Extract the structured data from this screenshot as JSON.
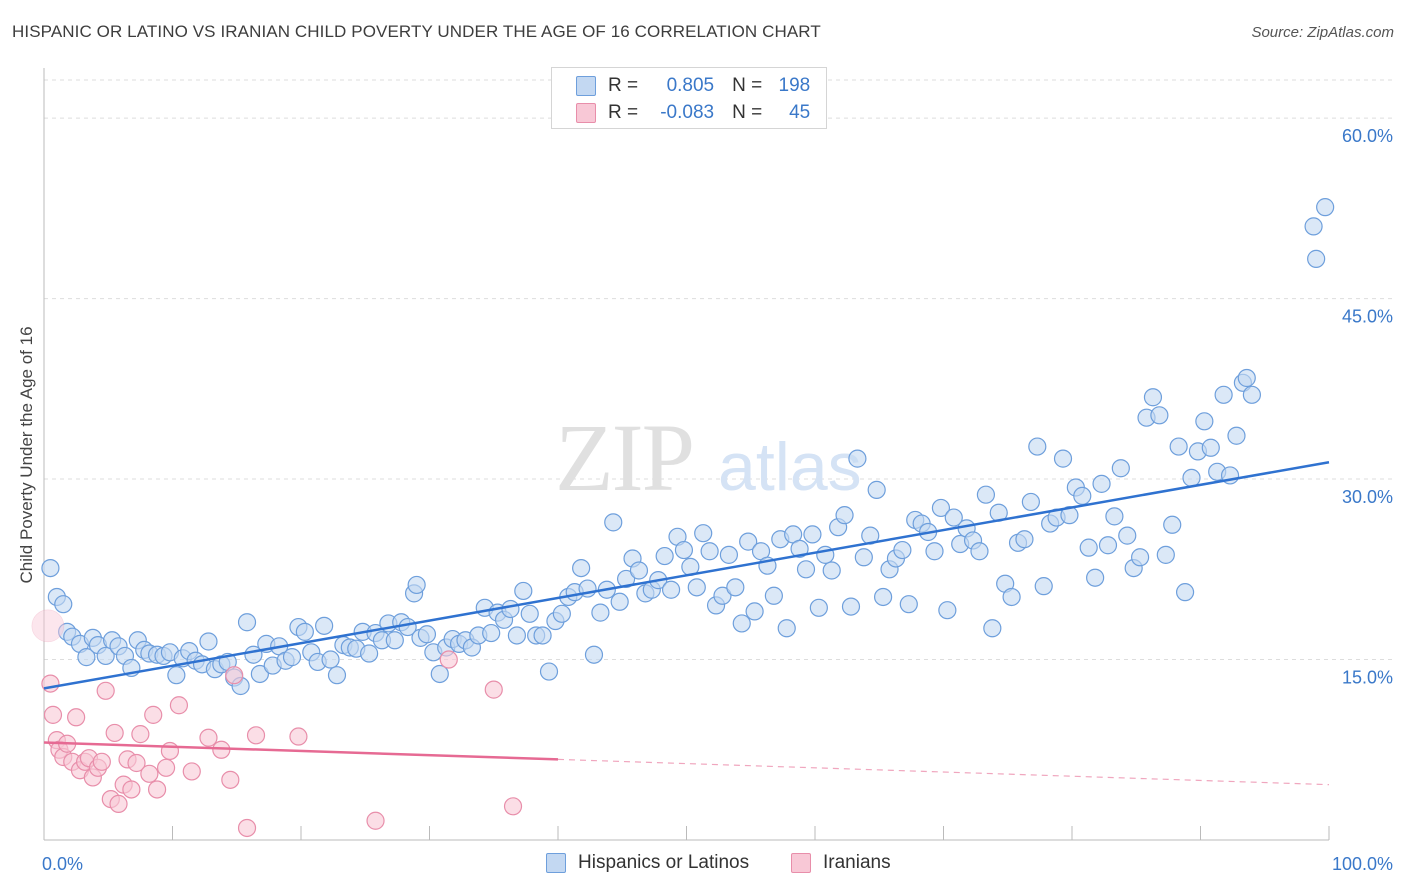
{
  "title": "HISPANIC OR LATINO VS IRANIAN CHILD POVERTY UNDER THE AGE OF 16 CORRELATION CHART",
  "source": "Source: ZipAtlas.com",
  "watermark": {
    "zip": "ZIP",
    "atlas": "atlas"
  },
  "colors": {
    "blue_fill": "#c3d8f2",
    "blue_stroke": "#6e9fdc",
    "blue_line": "#2f72d0",
    "pink_fill": "#f8c8d6",
    "pink_stroke": "#e88eaa",
    "pink_line": "#e66a93",
    "axis_text": "#3a78c9",
    "grid": "#dddddd"
  },
  "legend": {
    "rows": [
      {
        "r_label": "R =",
        "r_value": "0.805",
        "n_label": "N =",
        "n_value": "198"
      },
      {
        "r_label": "R =",
        "r_value": "-0.083",
        "n_label": "N =",
        "n_value": "45"
      }
    ]
  },
  "bottom_legend": {
    "series1": "Hispanics or Latinos",
    "series2": "Iranians"
  },
  "chart_data": {
    "type": "scatter",
    "xlabel": "",
    "ylabel": "Child Poverty Under the Age of 16",
    "xlim": [
      0,
      100
    ],
    "ylim": [
      0,
      63.5
    ],
    "x_tick_labels": [
      "0.0%",
      "100.0%"
    ],
    "y_ticks": [
      15,
      30,
      45,
      60
    ],
    "y_tick_labels": [
      "15.0%",
      "30.0%",
      "45.0%",
      "60.0%"
    ],
    "grid": true,
    "legend_position": "top-center",
    "series": [
      {
        "name": "Hispanics or Latinos",
        "color": "#6e9fdc",
        "trend": {
          "x": [
            0,
            100
          ],
          "y": [
            12.6,
            31.4
          ]
        },
        "points": [
          [
            0.5,
            22.6
          ],
          [
            1.0,
            20.2
          ],
          [
            1.5,
            19.6
          ],
          [
            1.8,
            17.3
          ],
          [
            2.2,
            16.9
          ],
          [
            2.8,
            16.3
          ],
          [
            3.3,
            15.2
          ],
          [
            3.8,
            16.8
          ],
          [
            4.2,
            16.2
          ],
          [
            4.8,
            15.3
          ],
          [
            5.3,
            16.6
          ],
          [
            5.8,
            16.1
          ],
          [
            6.3,
            15.3
          ],
          [
            6.8,
            14.3
          ],
          [
            7.3,
            16.6
          ],
          [
            7.8,
            15.8
          ],
          [
            8.2,
            15.5
          ],
          [
            8.8,
            15.4
          ],
          [
            9.3,
            15.3
          ],
          [
            9.8,
            15.6
          ],
          [
            10.3,
            13.7
          ],
          [
            10.8,
            15.1
          ],
          [
            11.3,
            15.7
          ],
          [
            11.8,
            14.9
          ],
          [
            12.3,
            14.6
          ],
          [
            12.8,
            16.5
          ],
          [
            13.3,
            14.2
          ],
          [
            13.8,
            14.6
          ],
          [
            14.3,
            14.8
          ],
          [
            14.8,
            13.5
          ],
          [
            15.3,
            12.8
          ],
          [
            15.8,
            18.1
          ],
          [
            16.3,
            15.4
          ],
          [
            16.8,
            13.8
          ],
          [
            17.3,
            16.3
          ],
          [
            17.8,
            14.5
          ],
          [
            18.3,
            16.1
          ],
          [
            18.8,
            14.9
          ],
          [
            19.3,
            15.2
          ],
          [
            19.8,
            17.7
          ],
          [
            20.3,
            17.3
          ],
          [
            20.8,
            15.6
          ],
          [
            21.3,
            14.8
          ],
          [
            21.8,
            17.8
          ],
          [
            22.3,
            15.0
          ],
          [
            22.8,
            13.7
          ],
          [
            23.3,
            16.2
          ],
          [
            23.8,
            16.0
          ],
          [
            24.3,
            15.9
          ],
          [
            24.8,
            17.3
          ],
          [
            25.3,
            15.5
          ],
          [
            25.8,
            17.2
          ],
          [
            26.3,
            16.6
          ],
          [
            26.8,
            18.0
          ],
          [
            27.3,
            16.6
          ],
          [
            27.8,
            18.1
          ],
          [
            28.3,
            17.7
          ],
          [
            28.8,
            20.5
          ],
          [
            29.0,
            21.2
          ],
          [
            29.3,
            16.8
          ],
          [
            29.8,
            17.1
          ],
          [
            30.3,
            15.6
          ],
          [
            30.8,
            13.8
          ],
          [
            31.3,
            16.0
          ],
          [
            31.8,
            16.7
          ],
          [
            32.3,
            16.3
          ],
          [
            32.8,
            16.6
          ],
          [
            33.3,
            16.0
          ],
          [
            33.8,
            17.0
          ],
          [
            34.3,
            19.3
          ],
          [
            34.8,
            17.2
          ],
          [
            35.3,
            18.9
          ],
          [
            35.8,
            18.3
          ],
          [
            36.3,
            19.2
          ],
          [
            36.8,
            17.0
          ],
          [
            37.3,
            20.7
          ],
          [
            37.8,
            18.8
          ],
          [
            38.3,
            17.0
          ],
          [
            38.8,
            17.0
          ],
          [
            39.3,
            14.0
          ],
          [
            39.8,
            18.2
          ],
          [
            40.3,
            18.8
          ],
          [
            40.8,
            20.2
          ],
          [
            41.3,
            20.6
          ],
          [
            41.8,
            22.6
          ],
          [
            42.3,
            20.9
          ],
          [
            42.8,
            15.4
          ],
          [
            43.3,
            18.9
          ],
          [
            43.8,
            20.8
          ],
          [
            44.3,
            26.4
          ],
          [
            44.8,
            19.8
          ],
          [
            45.3,
            21.7
          ],
          [
            45.8,
            23.4
          ],
          [
            46.3,
            22.4
          ],
          [
            46.8,
            20.5
          ],
          [
            47.3,
            20.8
          ],
          [
            47.8,
            21.6
          ],
          [
            48.3,
            23.6
          ],
          [
            48.8,
            20.8
          ],
          [
            49.3,
            25.2
          ],
          [
            49.8,
            24.1
          ],
          [
            50.3,
            22.7
          ],
          [
            50.8,
            21.0
          ],
          [
            51.3,
            25.5
          ],
          [
            51.8,
            24.0
          ],
          [
            52.3,
            19.5
          ],
          [
            52.8,
            20.3
          ],
          [
            53.3,
            23.7
          ],
          [
            53.8,
            21.0
          ],
          [
            54.3,
            18.0
          ],
          [
            54.8,
            24.8
          ],
          [
            55.3,
            19.0
          ],
          [
            55.8,
            24.0
          ],
          [
            56.3,
            22.8
          ],
          [
            56.8,
            20.3
          ],
          [
            57.3,
            25.0
          ],
          [
            57.8,
            17.6
          ],
          [
            58.3,
            25.4
          ],
          [
            58.8,
            24.2
          ],
          [
            59.3,
            22.5
          ],
          [
            59.8,
            25.4
          ],
          [
            60.3,
            19.3
          ],
          [
            60.8,
            23.7
          ],
          [
            61.3,
            22.4
          ],
          [
            61.8,
            26.0
          ],
          [
            62.3,
            27.0
          ],
          [
            62.8,
            19.4
          ],
          [
            63.3,
            31.7
          ],
          [
            63.8,
            23.5
          ],
          [
            64.3,
            25.3
          ],
          [
            64.8,
            29.1
          ],
          [
            65.3,
            20.2
          ],
          [
            65.8,
            22.5
          ],
          [
            66.3,
            23.4
          ],
          [
            66.8,
            24.1
          ],
          [
            67.3,
            19.6
          ],
          [
            67.8,
            26.6
          ],
          [
            68.3,
            26.3
          ],
          [
            68.8,
            25.6
          ],
          [
            69.3,
            24.0
          ],
          [
            69.8,
            27.6
          ],
          [
            70.3,
            19.1
          ],
          [
            70.8,
            26.8
          ],
          [
            71.3,
            24.6
          ],
          [
            71.8,
            25.9
          ],
          [
            72.3,
            24.9
          ],
          [
            72.8,
            24.0
          ],
          [
            73.3,
            28.7
          ],
          [
            73.8,
            17.6
          ],
          [
            74.3,
            27.2
          ],
          [
            74.8,
            21.3
          ],
          [
            75.3,
            20.2
          ],
          [
            75.8,
            24.7
          ],
          [
            76.3,
            25.0
          ],
          [
            76.8,
            28.1
          ],
          [
            77.3,
            32.7
          ],
          [
            77.8,
            21.1
          ],
          [
            78.3,
            26.3
          ],
          [
            78.8,
            26.8
          ],
          [
            79.3,
            31.7
          ],
          [
            79.8,
            27.0
          ],
          [
            80.3,
            29.3
          ],
          [
            80.8,
            28.6
          ],
          [
            81.3,
            24.3
          ],
          [
            81.8,
            21.8
          ],
          [
            82.3,
            29.6
          ],
          [
            82.8,
            24.5
          ],
          [
            83.3,
            26.9
          ],
          [
            83.8,
            30.9
          ],
          [
            84.3,
            25.3
          ],
          [
            84.8,
            22.6
          ],
          [
            85.3,
            23.5
          ],
          [
            85.8,
            35.1
          ],
          [
            86.3,
            36.8
          ],
          [
            86.8,
            35.3
          ],
          [
            87.3,
            23.7
          ],
          [
            87.8,
            26.2
          ],
          [
            88.3,
            32.7
          ],
          [
            88.8,
            20.6
          ],
          [
            89.3,
            30.1
          ],
          [
            89.8,
            32.3
          ],
          [
            90.3,
            34.8
          ],
          [
            90.8,
            32.6
          ],
          [
            91.3,
            30.6
          ],
          [
            91.8,
            37.0
          ],
          [
            92.3,
            30.3
          ],
          [
            92.8,
            33.6
          ],
          [
            93.3,
            38.0
          ],
          [
            93.6,
            38.4
          ],
          [
            94.0,
            37.0
          ],
          [
            98.8,
            51.0
          ],
          [
            99.0,
            48.3
          ],
          [
            99.7,
            52.6
          ]
        ]
      },
      {
        "name": "Iranians",
        "color": "#e88eaa",
        "trend": {
          "x": [
            0,
            40
          ],
          "y": [
            8.1,
            6.7
          ]
        },
        "trend_extended": {
          "x": [
            40,
            100
          ],
          "y": [
            6.7,
            4.6
          ]
        },
        "points": [
          [
            0.3,
            17.8
          ],
          [
            0.5,
            13.0
          ],
          [
            0.7,
            10.4
          ],
          [
            1.0,
            8.3
          ],
          [
            1.2,
            7.5
          ],
          [
            1.5,
            6.9
          ],
          [
            1.8,
            8.0
          ],
          [
            2.2,
            6.5
          ],
          [
            2.5,
            10.2
          ],
          [
            2.8,
            5.8
          ],
          [
            3.2,
            6.5
          ],
          [
            3.5,
            6.8
          ],
          [
            3.8,
            5.2
          ],
          [
            4.2,
            6.0
          ],
          [
            4.5,
            6.5
          ],
          [
            4.8,
            12.4
          ],
          [
            5.2,
            3.4
          ],
          [
            5.5,
            8.9
          ],
          [
            5.8,
            3.0
          ],
          [
            6.2,
            4.6
          ],
          [
            6.5,
            6.7
          ],
          [
            6.8,
            4.2
          ],
          [
            7.2,
            6.4
          ],
          [
            7.5,
            8.8
          ],
          [
            8.2,
            5.5
          ],
          [
            8.5,
            10.4
          ],
          [
            8.8,
            4.2
          ],
          [
            9.5,
            6.0
          ],
          [
            9.8,
            7.4
          ],
          [
            10.5,
            11.2
          ],
          [
            11.5,
            5.7
          ],
          [
            12.8,
            8.5
          ],
          [
            13.8,
            7.5
          ],
          [
            14.5,
            5.0
          ],
          [
            14.8,
            13.7
          ],
          [
            15.8,
            1.0
          ],
          [
            16.5,
            8.7
          ],
          [
            19.8,
            8.6
          ],
          [
            25.8,
            1.6
          ],
          [
            31.5,
            15.0
          ],
          [
            35.0,
            12.5
          ],
          [
            36.5,
            2.8
          ]
        ]
      }
    ]
  }
}
